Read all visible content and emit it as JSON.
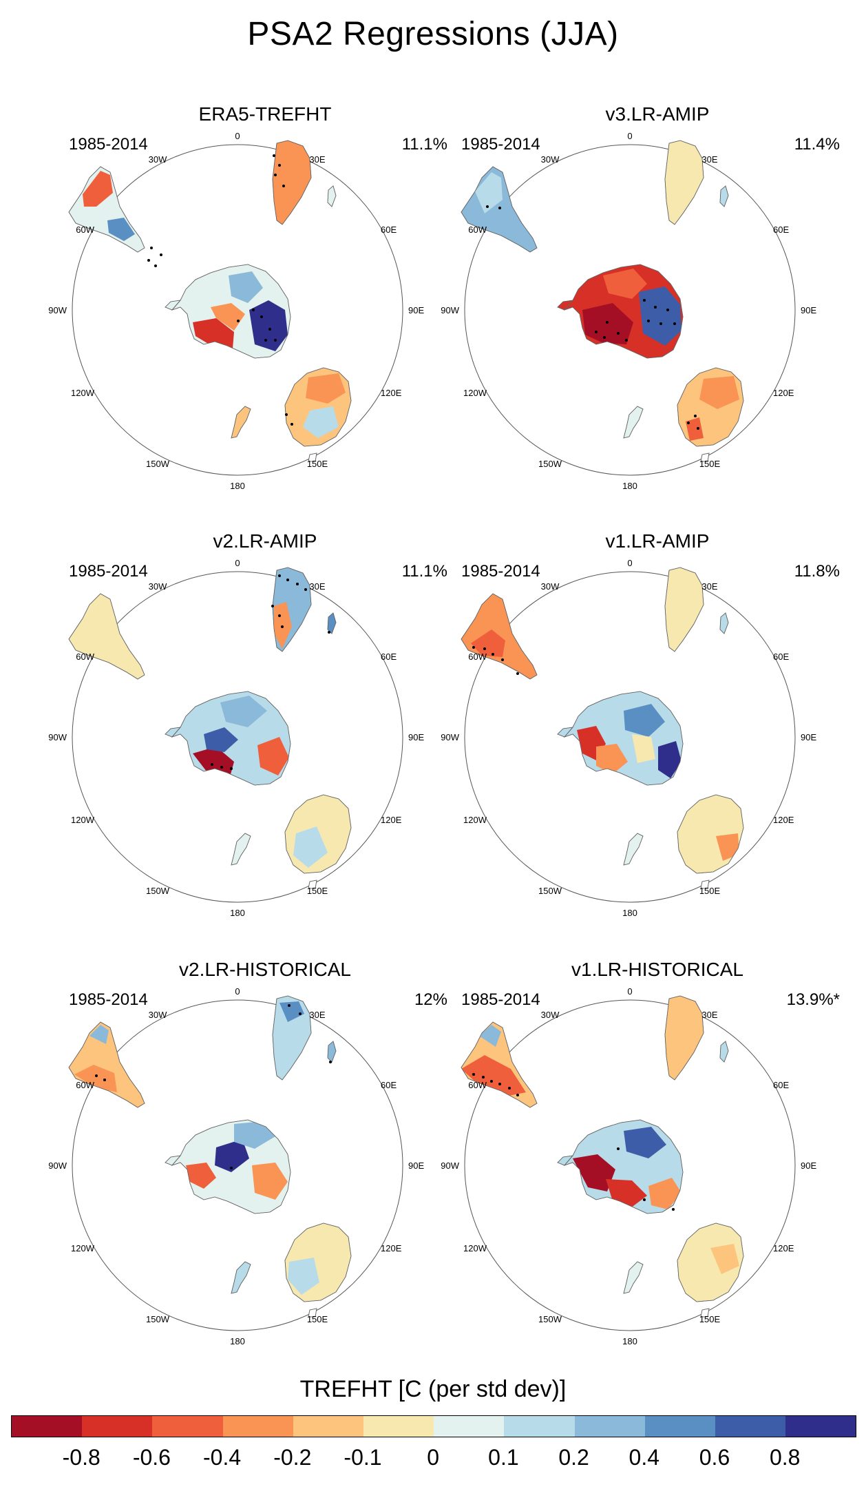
{
  "figure": {
    "title": "PSA2 Regressions (JJA)"
  },
  "chart_data": {
    "type": "polar-stereographic-map",
    "projection": "south-polar",
    "longitude_labels": [
      "0",
      "30E",
      "60E",
      "90E",
      "120E",
      "150E",
      "180",
      "150W",
      "120W",
      "90W",
      "60W",
      "30W"
    ],
    "panels": [
      {
        "title": "ERA5-TREFHT",
        "period": "1985-2014",
        "variance": "11.1%"
      },
      {
        "title": "v3.LR-AMIP",
        "period": "1985-2014",
        "variance": "11.4%"
      },
      {
        "title": "v2.LR-AMIP",
        "period": "1985-2014",
        "variance": "11.1%"
      },
      {
        "title": "v1.LR-AMIP",
        "period": "1985-2014",
        "variance": "11.8%"
      },
      {
        "title": "v2.LR-HISTORICAL",
        "period": "1985-2014",
        "variance": "12%"
      },
      {
        "title": "v1.LR-HISTORICAL",
        "period": "1985-2014",
        "variance": "13.9%*"
      }
    ],
    "colorbar": {
      "title": "TREFHT [C (per std dev)]",
      "tick_labels": [
        "-0.8",
        "-0.6",
        "-0.4",
        "-0.2",
        "-0.1",
        "0",
        "0.1",
        "0.2",
        "0.4",
        "0.6",
        "0.8"
      ],
      "colors": [
        "#a50f26",
        "#d73027",
        "#ef5f3c",
        "#f99454",
        "#fdc47d",
        "#f7e8b0",
        "#e4f2ef",
        "#b8dbe9",
        "#8ab9d9",
        "#5a8fc4",
        "#3e5da8",
        "#2f2e8a"
      ]
    }
  }
}
